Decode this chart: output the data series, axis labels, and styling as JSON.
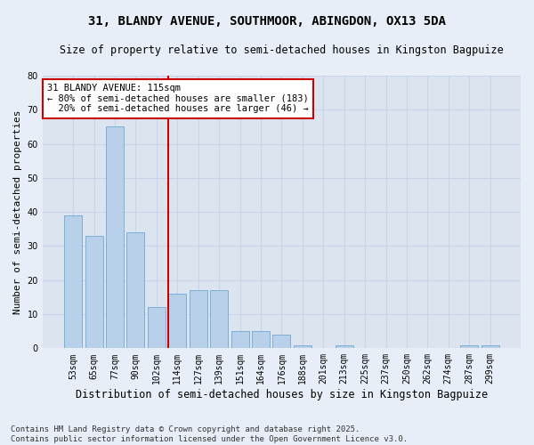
{
  "title": "31, BLANDY AVENUE, SOUTHMOOR, ABINGDON, OX13 5DA",
  "subtitle": "Size of property relative to semi-detached houses in Kingston Bagpuize",
  "xlabel": "Distribution of semi-detached houses by size in Kingston Bagpuize",
  "ylabel": "Number of semi-detached properties",
  "categories": [
    "53sqm",
    "65sqm",
    "77sqm",
    "90sqm",
    "102sqm",
    "114sqm",
    "127sqm",
    "139sqm",
    "151sqm",
    "164sqm",
    "176sqm",
    "188sqm",
    "201sqm",
    "213sqm",
    "225sqm",
    "237sqm",
    "250sqm",
    "262sqm",
    "274sqm",
    "287sqm",
    "299sqm"
  ],
  "values": [
    39,
    33,
    65,
    34,
    12,
    16,
    17,
    17,
    5,
    5,
    4,
    1,
    0,
    1,
    0,
    0,
    0,
    0,
    0,
    1,
    1
  ],
  "bar_color": "#b8d0ea",
  "bar_edge_color": "#6ea8d0",
  "vline_color": "#cc0000",
  "annotation_box_color": "#cc0000",
  "ylim": [
    0,
    80
  ],
  "yticks": [
    0,
    10,
    20,
    30,
    40,
    50,
    60,
    70,
    80
  ],
  "grid_color": "#c8d4e8",
  "bg_color": "#dce4f0",
  "fig_bg_color": "#e8eef8",
  "footnote1": "Contains HM Land Registry data © Crown copyright and database right 2025.",
  "footnote2": "Contains public sector information licensed under the Open Government Licence v3.0.",
  "title_fontsize": 10,
  "subtitle_fontsize": 8.5,
  "xlabel_fontsize": 8.5,
  "ylabel_fontsize": 8,
  "tick_fontsize": 7,
  "annot_fontsize": 7.5,
  "footnote_fontsize": 6.5
}
